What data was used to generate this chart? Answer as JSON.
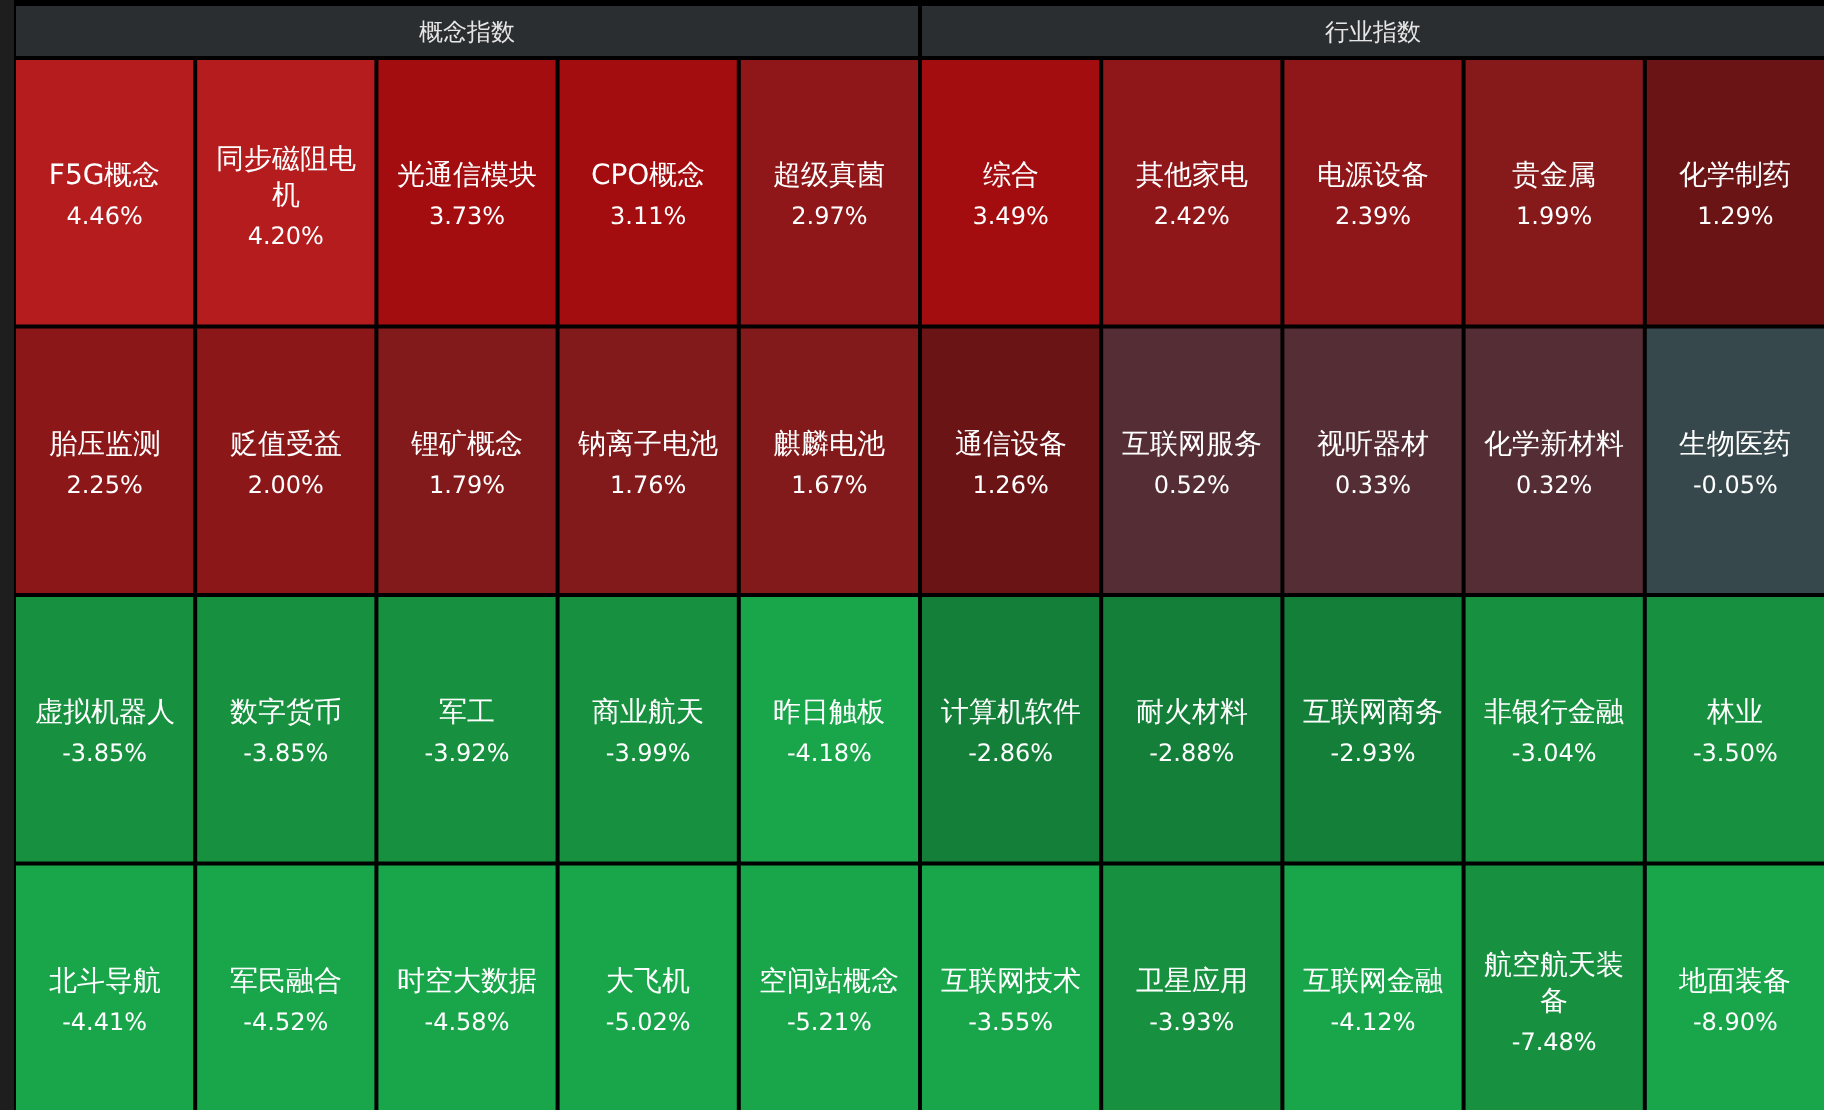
{
  "chart_data": [
    {
      "type": "other",
      "title": "概念指数",
      "categories": [
        "F5G概念",
        "同步磁阻电机",
        "光通信模块",
        "CPO概念",
        "超级真菌",
        "胎压监测",
        "贬值受益",
        "锂矿概念",
        "钠离子电池",
        "麒麟电池",
        "虚拟机器人",
        "数字货币",
        "军工",
        "商业航天",
        "昨日触板",
        "北斗导航",
        "军民融合",
        "时空大数据",
        "大飞机",
        "空间站概念"
      ],
      "values": [
        4.46,
        4.2,
        3.73,
        3.11,
        2.97,
        2.25,
        2.0,
        1.79,
        1.76,
        1.67,
        -3.85,
        -3.85,
        -3.92,
        -3.99,
        -4.18,
        -4.41,
        -4.52,
        -4.58,
        -5.02,
        -5.21
      ],
      "value_labels": [
        "4.46%",
        "4.20%",
        "3.73%",
        "3.11%",
        "2.97%",
        "2.25%",
        "2.00%",
        "1.79%",
        "1.76%",
        "1.67%",
        "-3.85%",
        "-3.85%",
        "-3.92%",
        "-3.99%",
        "-4.18%",
        "-4.41%",
        "-4.52%",
        "-4.58%",
        "-5.02%",
        "-5.21%"
      ],
      "colors": [
        "#b41c1e",
        "#b41c1e",
        "#a30d0f",
        "#a30d0f",
        "#8f1719",
        "#8b1719",
        "#8b1719",
        "#821a1b",
        "#821a1b",
        "#821a1b",
        "#17903f",
        "#17903f",
        "#17903f",
        "#17903f",
        "#19a64b",
        "#19a64b",
        "#19a64b",
        "#19a64b",
        "#19a64b",
        "#19a64b"
      ]
    },
    {
      "type": "other",
      "title": "行业指数",
      "categories": [
        "综合",
        "其他家电",
        "电源设备",
        "贵金属",
        "化学制药",
        "通信设备",
        "互联网服务",
        "视听器材",
        "化学新材料",
        "生物医药",
        "计算机软件",
        "耐火材料",
        "互联网商务",
        "非银行金融",
        "林业",
        "互联网技术",
        "卫星应用",
        "互联网金融",
        "航空航天装备",
        "地面装备"
      ],
      "values": [
        3.49,
        2.42,
        2.39,
        1.99,
        1.29,
        1.26,
        0.52,
        0.33,
        0.32,
        -0.05,
        -2.86,
        -2.88,
        -2.93,
        -3.04,
        -3.5,
        -3.55,
        -3.93,
        -4.12,
        -7.48,
        -8.9
      ],
      "value_labels": [
        "3.49%",
        "2.42%",
        "2.39%",
        "1.99%",
        "1.29%",
        "1.26%",
        "0.52%",
        "0.33%",
        "0.32%",
        "-0.05%",
        "-2.86%",
        "-2.88%",
        "-2.93%",
        "-3.04%",
        "-3.50%",
        "-3.55%",
        "-3.93%",
        "-4.12%",
        "-7.48%",
        "-8.90%"
      ],
      "colors": [
        "#a30d0f",
        "#8f1719",
        "#8f1719",
        "#861a1b",
        "#6b1416",
        "#6b1416",
        "#552d35",
        "#552d35",
        "#552d35",
        "#36484c",
        "#147f39",
        "#147f39",
        "#147f39",
        "#17903f",
        "#17903f",
        "#19a64b",
        "#17903f",
        "#19a64b",
        "#17903f",
        "#19a64b"
      ]
    }
  ]
}
